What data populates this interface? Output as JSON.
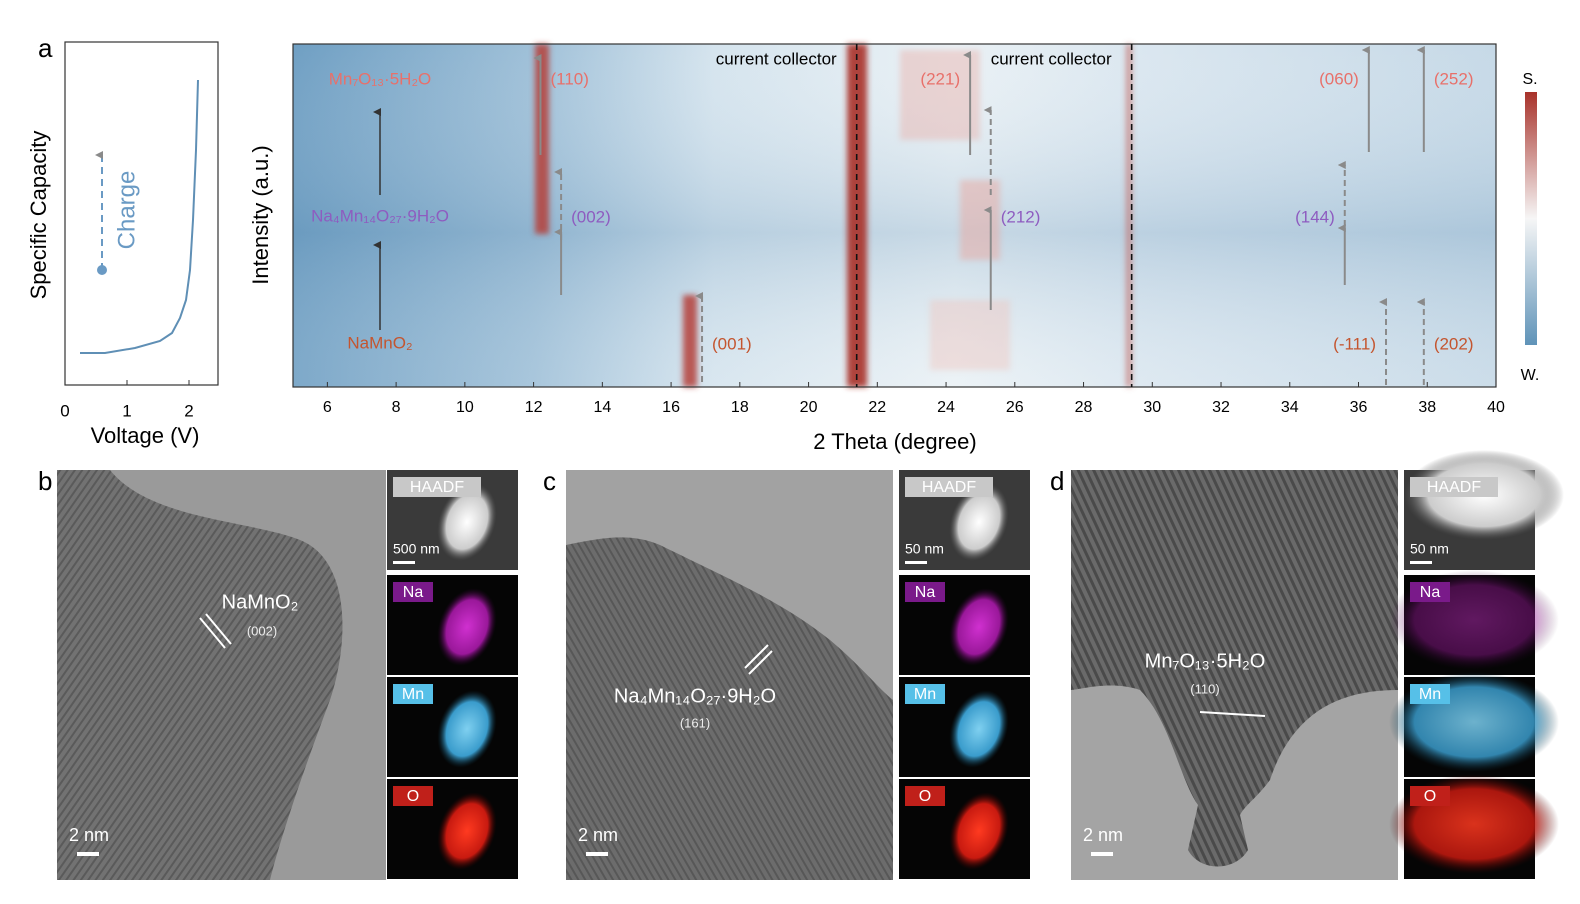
{
  "panel_a": {
    "letter": "a",
    "capacity_plot": {
      "y_label": "Specific Capacity",
      "x_label": "Voltage (V)",
      "annotation": "Charge",
      "xlim": [
        0,
        2.5
      ],
      "xticks": [
        0,
        1,
        2
      ]
    },
    "xrd_map": {
      "y_label": "Intensity (a.u.)",
      "x_label": "2 Theta (degree)",
      "xlim": [
        5,
        40
      ],
      "xticks": [
        6,
        8,
        10,
        12,
        14,
        16,
        18,
        20,
        22,
        24,
        26,
        28,
        30,
        32,
        34,
        36,
        38,
        40
      ],
      "colorbar": {
        "high": "S.",
        "low": "W."
      },
      "current_collectors": [
        {
          "label": "current collector",
          "two_theta": 21.4
        },
        {
          "label": "current collector",
          "two_theta": 29.4
        }
      ],
      "phases": [
        {
          "name": "Mn₇O₁₃·5H₂O",
          "color": "#e8706a",
          "peaks": [
            {
              "label": "(110)",
              "two_theta": 12.2,
              "arrows": [
                "solid"
              ]
            },
            {
              "label": "(221)",
              "two_theta": 24.7,
              "arrows": [
                "solid"
              ]
            },
            {
              "label": "(060)",
              "two_theta": 36.3,
              "arrows": [
                "solid"
              ]
            },
            {
              "label": "(252)",
              "two_theta": 37.9,
              "arrows": [
                "solid"
              ]
            }
          ]
        },
        {
          "name": "Na₄Mn₁₄O₂₇·9H₂O",
          "color": "#8e5cc0",
          "peaks": [
            {
              "label": "(002)",
              "two_theta": 12.8,
              "arrows": [
                "solid",
                "dashed"
              ]
            },
            {
              "label": "(212)",
              "two_theta": 25.3,
              "arrows": [
                "solid",
                "dashed"
              ]
            },
            {
              "label": "(144)",
              "two_theta": 35.6,
              "arrows": [
                "solid",
                "dashed"
              ]
            }
          ]
        },
        {
          "name": "NaMnO₂",
          "color": "#c4552f",
          "peaks": [
            {
              "label": "(001)",
              "two_theta": 16.9,
              "arrows": [
                "dashed"
              ]
            },
            {
              "label": "(-111)",
              "two_theta": 36.8,
              "arrows": [
                "dashed"
              ]
            },
            {
              "label": "(202)",
              "two_theta": 37.9,
              "arrows": [
                "dashed"
              ]
            }
          ]
        }
      ]
    }
  },
  "panels": [
    {
      "letter": "b",
      "phase": "NaMnO₂",
      "plane": "(002)",
      "scale_bar": "2 nm",
      "eds_scale_bar": "500 nm",
      "maps": [
        "HAADF",
        "Na",
        "Mn",
        "O"
      ]
    },
    {
      "letter": "c",
      "phase": "Na₄Mn₁₄O₂₇·9H₂O",
      "plane": "(161)",
      "scale_bar": "2 nm",
      "eds_scale_bar": "50 nm",
      "maps": [
        "HAADF",
        "Na",
        "Mn",
        "O"
      ]
    },
    {
      "letter": "d",
      "phase": "Mn₇O₁₃·5H₂O",
      "plane": "(110)",
      "scale_bar": "2 nm",
      "eds_scale_bar": "50 nm",
      "maps": [
        "HAADF",
        "Na",
        "Mn",
        "O"
      ]
    }
  ]
}
